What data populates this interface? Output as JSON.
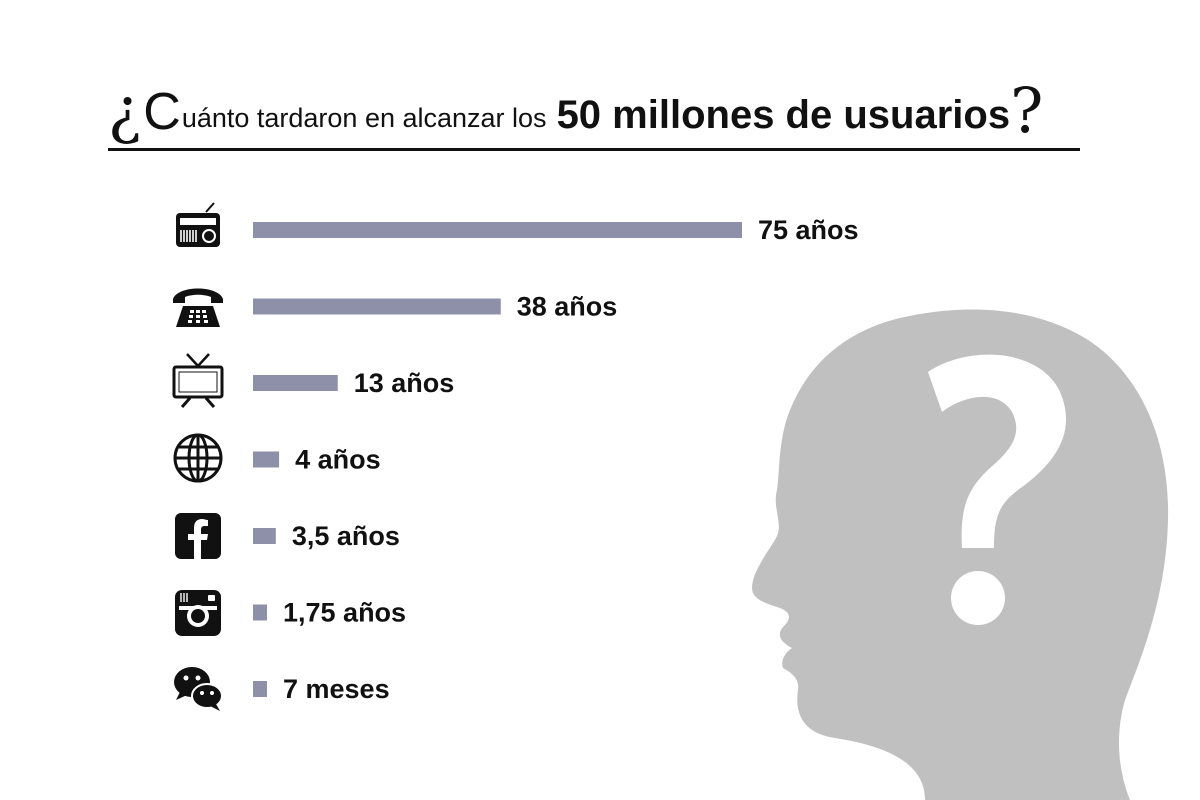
{
  "title": {
    "open_mark": "¿",
    "first_letter": "C",
    "light_text": "uánto tardaron en alcanzar los",
    "bold_text": "50 millones de usuarios",
    "close_mark": "?"
  },
  "colors": {
    "bar": "#8e90aa",
    "silhouette": "#c0c0c0",
    "text": "#111111",
    "rule": "#111111"
  },
  "chart_data": {
    "type": "bar",
    "orientation": "horizontal",
    "title": "¿Cuánto tardaron en alcanzar los 50 millones de usuarios?",
    "unit": "años",
    "categories": [
      "radio-icon",
      "telephone-icon",
      "television-icon",
      "internet-globe-icon",
      "facebook-icon",
      "instagram-icon",
      "wechat-icon"
    ],
    "values": [
      75,
      38,
      13,
      4,
      3.5,
      1.75,
      0.58
    ],
    "labels": [
      "75 años",
      "38 años",
      "13 años",
      "4 años",
      "3,5 años",
      "1,75 años",
      "7 meses"
    ],
    "xlim": [
      0,
      75
    ],
    "grid": false
  }
}
